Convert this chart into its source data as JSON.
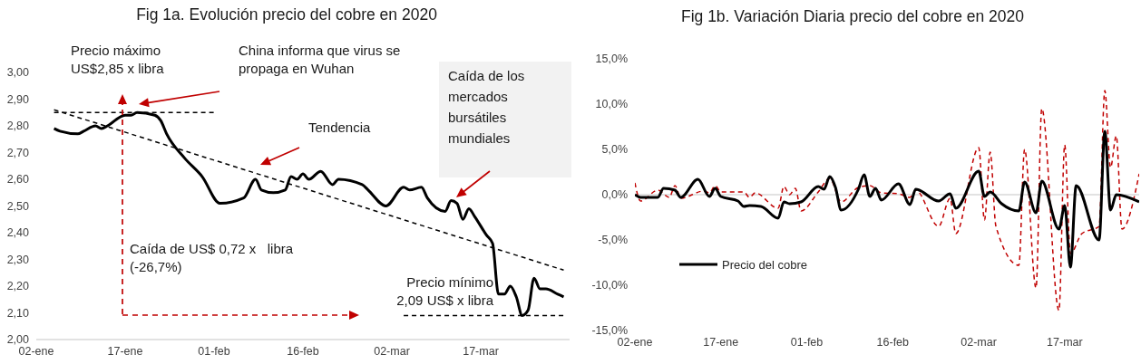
{
  "chart_data": [
    {
      "type": "line",
      "title": "Fig 1a. Evolución precio del cobre en 2020",
      "xlim": [
        "2020-01-02",
        "2020-04-01"
      ],
      "xticks": [
        {
          "value": "2020-01-02",
          "label": "02-ene"
        },
        {
          "value": "2020-01-17",
          "label": "17-ene"
        },
        {
          "value": "2020-02-01",
          "label": "01-feb"
        },
        {
          "value": "2020-02-16",
          "label": "16-feb"
        },
        {
          "value": "2020-03-02",
          "label": "02-mar"
        },
        {
          "value": "2020-03-17",
          "label": "17-mar"
        }
      ],
      "ylim": [
        2.0,
        3.0
      ],
      "yticks": [
        {
          "value": 2.0,
          "label": "2,00"
        },
        {
          "value": 2.1,
          "label": "2,10"
        },
        {
          "value": 2.2,
          "label": "2,20"
        },
        {
          "value": 2.3,
          "label": "2,30"
        },
        {
          "value": 2.4,
          "label": "2,40"
        },
        {
          "value": 2.5,
          "label": "2,50"
        },
        {
          "value": 2.6,
          "label": "2,60"
        },
        {
          "value": 2.7,
          "label": "2,70"
        },
        {
          "value": 2.8,
          "label": "2,80"
        },
        {
          "value": 2.9,
          "label": "2,90"
        },
        {
          "value": 3.0,
          "label": "3,00"
        }
      ],
      "series": [
        {
          "color": "#000000",
          "line_style": "solid",
          "x": [
            "2020-01-05",
            "2020-01-06",
            "2020-01-09",
            "2020-01-10",
            "2020-01-12",
            "2020-01-13",
            "2020-01-14",
            "2020-01-17",
            "2020-01-18",
            "2020-01-19",
            "2020-01-22",
            "2020-01-23",
            "2020-01-24",
            "2020-01-27",
            "2020-01-30",
            "2020-02-02",
            "2020-02-06",
            "2020-02-08",
            "2020-02-09",
            "2020-02-11",
            "2020-02-13",
            "2020-02-14",
            "2020-02-15",
            "2020-02-16",
            "2020-02-17",
            "2020-02-19",
            "2020-02-21",
            "2020-02-22",
            "2020-02-26",
            "2020-02-27",
            "2020-03-01",
            "2020-03-04",
            "2020-03-05",
            "2020-03-07",
            "2020-03-08",
            "2020-03-11",
            "2020-03-12",
            "2020-03-13",
            "2020-03-14",
            "2020-03-15",
            "2020-03-16",
            "2020-03-18",
            "2020-03-19",
            "2020-03-20",
            "2020-03-21",
            "2020-03-22",
            "2020-03-23",
            "2020-03-24",
            "2020-03-25",
            "2020-03-26",
            "2020-03-27",
            "2020-03-28",
            "2020-03-30",
            "2020-03-31"
          ],
          "values": [
            2.79,
            2.78,
            2.77,
            2.78,
            2.8,
            2.79,
            2.8,
            2.84,
            2.84,
            2.85,
            2.84,
            2.82,
            2.77,
            2.68,
            2.61,
            2.51,
            2.53,
            2.6,
            2.56,
            2.55,
            2.56,
            2.61,
            2.6,
            2.62,
            2.6,
            2.63,
            2.58,
            2.6,
            2.58,
            2.56,
            2.5,
            2.57,
            2.56,
            2.57,
            2.53,
            2.48,
            2.52,
            2.51,
            2.45,
            2.49,
            2.46,
            2.39,
            2.36,
            2.17,
            2.17,
            2.2,
            2.16,
            2.09,
            2.11,
            2.23,
            2.19,
            2.19,
            2.17,
            2.16
          ]
        },
        {
          "type": "line",
          "color": "#000000",
          "line_style": "dashed",
          "x": [
            "2020-01-05",
            "2020-03-31"
          ],
          "values": [
            2.86,
            2.26
          ]
        },
        {
          "type": "line",
          "color": "#000000",
          "line_style": "dashed",
          "x": [
            "2020-01-05",
            "2020-02-01"
          ],
          "values": [
            2.85,
            2.85
          ]
        },
        {
          "type": "line",
          "color": "#000000",
          "line_style": "dashed",
          "x": [
            "2020-03-04",
            "2020-03-31"
          ],
          "values": [
            2.09,
            2.09
          ]
        }
      ],
      "annotations": [
        "Precio máximo US$2,85 x libra",
        "China informa que virus se propaga en Wuhan",
        "Tendencia",
        "Caída de los mercados bursátiles mundiales",
        "Caída de US$ 0,72 x   libra (-26,7%)",
        "Precio mínimo 2,09 US$ x libra"
      ]
    },
    {
      "type": "line",
      "title": "Fig 1b. Variación Diaria precio del cobre en 2020",
      "legend": "bottom left",
      "xlim": [
        "2020-01-02",
        "2020-03-30"
      ],
      "xticks": [
        {
          "value": "2020-01-02",
          "label": "02-ene"
        },
        {
          "value": "2020-01-17",
          "label": "17-ene"
        },
        {
          "value": "2020-02-01",
          "label": "01-feb"
        },
        {
          "value": "2020-02-16",
          "label": "16-feb"
        },
        {
          "value": "2020-03-02",
          "label": "02-mar"
        },
        {
          "value": "2020-03-17",
          "label": "17-mar"
        }
      ],
      "ylim": [
        -15,
        15
      ],
      "yticks": [
        {
          "value": -15,
          "label": "-15,0%"
        },
        {
          "value": -10,
          "label": "-10,0%"
        },
        {
          "value": -5,
          "label": "-5,0%"
        },
        {
          "value": 0,
          "label": "0,0%"
        },
        {
          "value": 5,
          "label": "5,0%"
        },
        {
          "value": 10,
          "label": "10,0%"
        },
        {
          "value": 15,
          "label": "15,0%"
        }
      ],
      "ref_lines": [
        {
          "axis": "y",
          "value": 0,
          "color": "#d9d9d9"
        }
      ],
      "series": [
        {
          "color": "#c00000",
          "line_style": "dashed",
          "x": [
            "2020-01-02",
            "2020-01-03",
            "2020-01-06",
            "2020-01-08",
            "2020-01-09",
            "2020-01-10",
            "2020-01-14",
            "2020-01-15",
            "2020-01-16",
            "2020-01-17",
            "2020-01-21",
            "2020-01-22",
            "2020-01-23",
            "2020-01-27",
            "2020-01-28",
            "2020-01-29",
            "2020-01-30",
            "2020-01-31",
            "2020-02-03",
            "2020-02-05",
            "2020-02-07",
            "2020-02-10",
            "2020-02-12",
            "2020-02-14",
            "2020-02-17",
            "2020-02-19",
            "2020-02-20",
            "2020-02-24",
            "2020-02-26",
            "2020-02-27",
            "2020-03-02",
            "2020-03-03",
            "2020-03-04",
            "2020-03-05",
            "2020-03-09",
            "2020-03-10",
            "2020-03-12",
            "2020-03-13",
            "2020-03-16",
            "2020-03-17",
            "2020-03-18",
            "2020-03-20",
            "2020-03-23",
            "2020-03-24",
            "2020-03-25",
            "2020-03-26",
            "2020-03-27",
            "2020-03-30"
          ],
          "values": [
            1.3,
            -0.7,
            0.5,
            -0.3,
            1.0,
            -0.4,
            0.4,
            0.2,
            1.0,
            0.3,
            0.3,
            -0.3,
            0.2,
            -1.5,
            0.9,
            0,
            0.7,
            -1.8,
            0.3,
            1.8,
            -0.8,
            0.8,
            1.0,
            0.2,
            0.1,
            -0.3,
            0.5,
            -3.5,
            -0.4,
            -4.3,
            5.2,
            -2.8,
            4.7,
            -3.5,
            -7.8,
            5.0,
            -10.3,
            9.5,
            -12.8,
            5.5,
            -6.5,
            -4.3,
            -3.5,
            11.5,
            3.0,
            6.5,
            -3.8,
            2.3
          ]
        },
        {
          "name": "Precio del cobre",
          "color": "#000000",
          "line_style": "solid",
          "x": [
            "2020-01-02",
            "2020-01-03",
            "2020-01-06",
            "2020-01-07",
            "2020-01-09",
            "2020-01-10",
            "2020-01-13",
            "2020-01-15",
            "2020-01-16",
            "2020-01-17",
            "2020-01-20",
            "2020-01-21",
            "2020-01-22",
            "2020-01-24",
            "2020-01-27",
            "2020-01-28",
            "2020-01-29",
            "2020-01-31",
            "2020-02-03",
            "2020-02-04",
            "2020-02-05",
            "2020-02-06",
            "2020-02-07",
            "2020-02-10",
            "2020-02-11",
            "2020-02-12",
            "2020-02-13",
            "2020-02-14",
            "2020-02-17",
            "2020-02-19",
            "2020-02-20",
            "2020-02-24",
            "2020-02-26",
            "2020-02-27",
            "2020-03-02",
            "2020-03-03",
            "2020-03-04",
            "2020-03-06",
            "2020-03-09",
            "2020-03-10",
            "2020-03-12",
            "2020-03-13",
            "2020-03-16",
            "2020-03-17",
            "2020-03-18",
            "2020-03-19",
            "2020-03-23",
            "2020-03-24",
            "2020-03-25",
            "2020-03-26",
            "2020-03-30"
          ],
          "values": [
            0,
            -0.3,
            -0.3,
            0.7,
            0.5,
            -0.3,
            1.7,
            -0.2,
            0.7,
            -0.2,
            -0.7,
            -1.3,
            -1.2,
            -1.3,
            -2.6,
            -0.8,
            -1.0,
            -0.8,
            0.9,
            0.6,
            2.0,
            0.8,
            -1.7,
            0.6,
            2.2,
            -0.2,
            0.7,
            -0.6,
            1.2,
            -1.1,
            0.6,
            -0.7,
            0.1,
            -1.5,
            2.6,
            -0.2,
            0.3,
            -1.0,
            -1.8,
            1.4,
            -2.0,
            1.5,
            -3.8,
            -1.2,
            -8.0,
            1.0,
            -5.0,
            7.0,
            -1.7,
            0,
            -0.8
          ]
        }
      ]
    }
  ]
}
